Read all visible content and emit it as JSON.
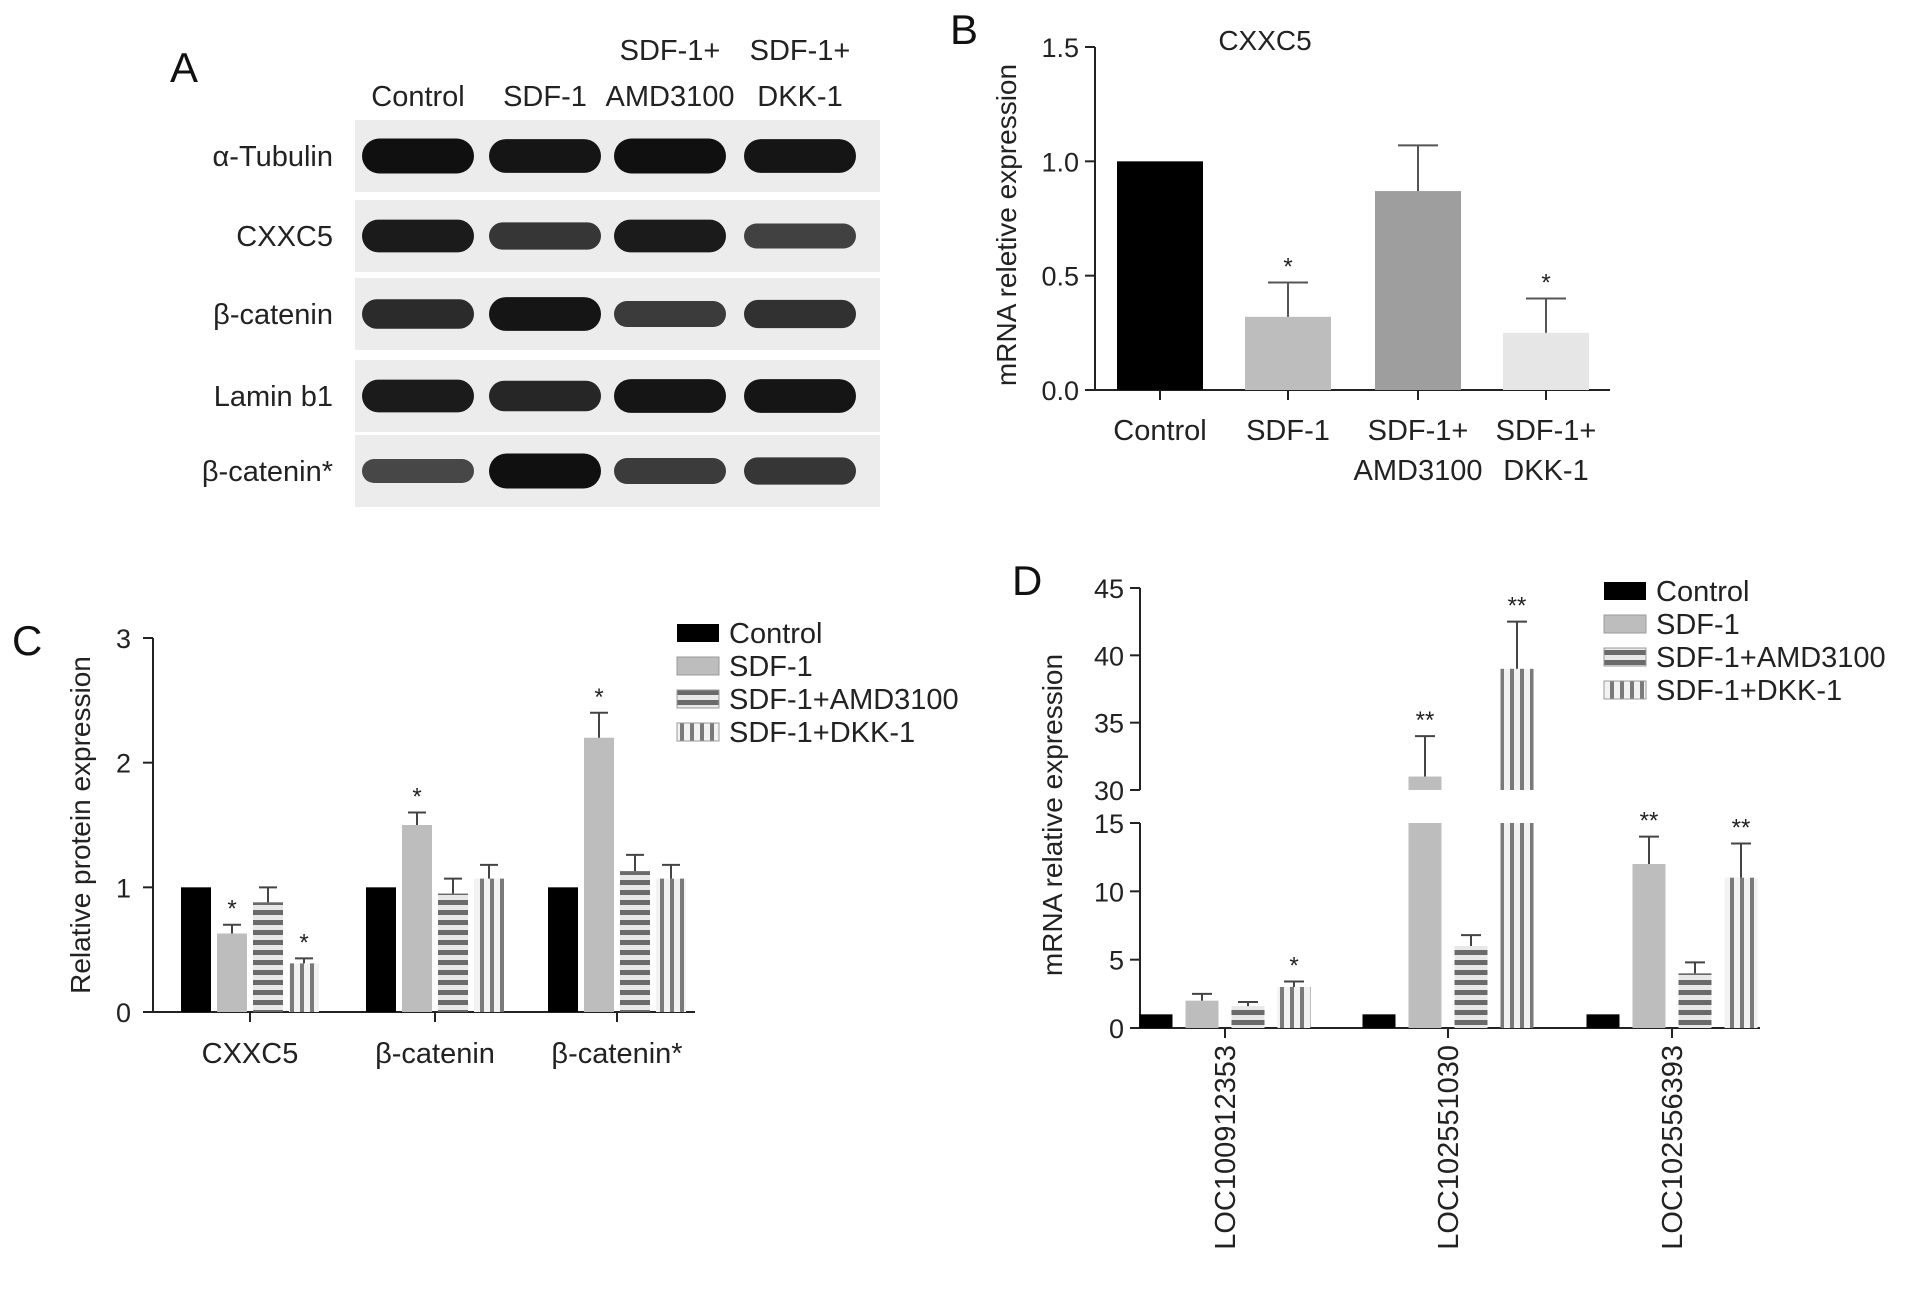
{
  "colors": {
    "control": "#000000",
    "sdf1": "#bdbdbd",
    "amd3100": "#7f7f7f",
    "dkk1": "#e0e0e0",
    "axis": "#222222"
  },
  "patterns": {
    "sdf1": "solid",
    "amd3100": "horizontal-stripes",
    "dkk1": "vertical-stripes"
  },
  "panel_a": {
    "letter": "A",
    "lanes": [
      {
        "line1": "",
        "line2": "Control"
      },
      {
        "line1": "",
        "line2": "SDF-1"
      },
      {
        "line1": "SDF-1+",
        "line2": "AMD3100"
      },
      {
        "line1": "SDF-1+",
        "line2": "DKK-1"
      }
    ],
    "rows": [
      {
        "label": "α-Tubulin",
        "intensity": [
          0.95,
          0.9,
          0.95,
          0.9
        ]
      },
      {
        "label": "CXXC5",
        "intensity": [
          0.85,
          0.6,
          0.85,
          0.5
        ]
      },
      {
        "label": "β-catenin",
        "intensity": [
          0.7,
          0.9,
          0.55,
          0.65
        ]
      },
      {
        "label": "Lamin b1",
        "intensity": [
          0.85,
          0.75,
          0.9,
          0.9
        ]
      },
      {
        "label": "β-catenin*",
        "intensity": [
          0.45,
          0.95,
          0.55,
          0.6
        ]
      }
    ]
  },
  "chart_data": [
    {
      "panel": "B",
      "type": "bar",
      "title": "CXXC5",
      "ylabel": "mRNA reletive expression",
      "ylim": [
        0,
        1.5
      ],
      "yticks": [
        "0.0",
        "0.5",
        "1.0",
        "1.5"
      ],
      "categories": [
        {
          "line1": "Control",
          "line2": ""
        },
        {
          "line1": "SDF-1",
          "line2": ""
        },
        {
          "line1": "SDF-1+",
          "line2": "AMD3100"
        },
        {
          "line1": "SDF-1+",
          "line2": "DKK-1"
        }
      ],
      "values": [
        1.0,
        0.32,
        0.87,
        0.25
      ],
      "errors": [
        0,
        0.15,
        0.2,
        0.15
      ],
      "significance": [
        "",
        "*",
        "",
        "*"
      ],
      "bar_colors": [
        "#000000",
        "#bdbdbd",
        "#9e9e9e",
        "#e6e6e6"
      ]
    },
    {
      "panel": "C",
      "type": "bar",
      "ylabel": "Relative protein expression",
      "ylim": [
        0,
        3
      ],
      "yticks": [
        "0",
        "1",
        "2",
        "3"
      ],
      "categories": [
        "CXXC5",
        "β-catenin",
        "β-catenin*"
      ],
      "legend": [
        "Control",
        "SDF-1",
        "SDF-1+AMD3100",
        "SDF-1+DKK-1"
      ],
      "legend_position": "top-right",
      "series": [
        {
          "name": "Control",
          "values": [
            1.0,
            1.0,
            1.0
          ],
          "errors": [
            0,
            0,
            0
          ],
          "significance": [
            "",
            "",
            ""
          ]
        },
        {
          "name": "SDF-1",
          "values": [
            0.63,
            1.5,
            2.2
          ],
          "errors": [
            0.07,
            0.1,
            0.2
          ],
          "significance": [
            "*",
            "*",
            "*"
          ]
        },
        {
          "name": "SDF-1+AMD3100",
          "values": [
            0.88,
            0.95,
            1.13
          ],
          "errors": [
            0.12,
            0.12,
            0.13
          ],
          "significance": [
            "",
            "",
            ""
          ]
        },
        {
          "name": "SDF-1+DKK-1",
          "values": [
            0.39,
            1.07,
            1.07
          ],
          "errors": [
            0.04,
            0.11,
            0.11
          ],
          "significance": [
            "*",
            "",
            ""
          ]
        }
      ]
    },
    {
      "panel": "D",
      "type": "bar",
      "ylabel": "mRNA relative expression",
      "axis_break": [
        15,
        30
      ],
      "ylim": [
        0,
        45
      ],
      "yticks_lower": [
        "0",
        "5",
        "10",
        "15"
      ],
      "yticks_upper": [
        "30",
        "35",
        "40",
        "45"
      ],
      "categories": [
        "LOC100912353",
        "LOC102551030",
        "LOC102556393"
      ],
      "legend": [
        "Control",
        "SDF-1",
        "SDF-1+AMD3100",
        "SDF-1+DKK-1"
      ],
      "legend_position": "top-right",
      "series": [
        {
          "name": "Control",
          "values": [
            1.0,
            1.0,
            1.0
          ],
          "errors": [
            0,
            0,
            0
          ],
          "significance": [
            "",
            "",
            ""
          ]
        },
        {
          "name": "SDF-1",
          "values": [
            2.0,
            31.0,
            12.0
          ],
          "errors": [
            0.5,
            3.0,
            2.0
          ],
          "significance": [
            "",
            "**",
            "**"
          ]
        },
        {
          "name": "SDF-1+AMD3100",
          "values": [
            1.6,
            6.0,
            4.0
          ],
          "errors": [
            0.3,
            0.8,
            0.8
          ],
          "significance": [
            "",
            "",
            ""
          ]
        },
        {
          "name": "SDF-1+DKK-1",
          "values": [
            3.0,
            39.0,
            11.0
          ],
          "errors": [
            0.4,
            3.5,
            2.5
          ],
          "significance": [
            "*",
            "**",
            "**"
          ]
        }
      ]
    }
  ]
}
